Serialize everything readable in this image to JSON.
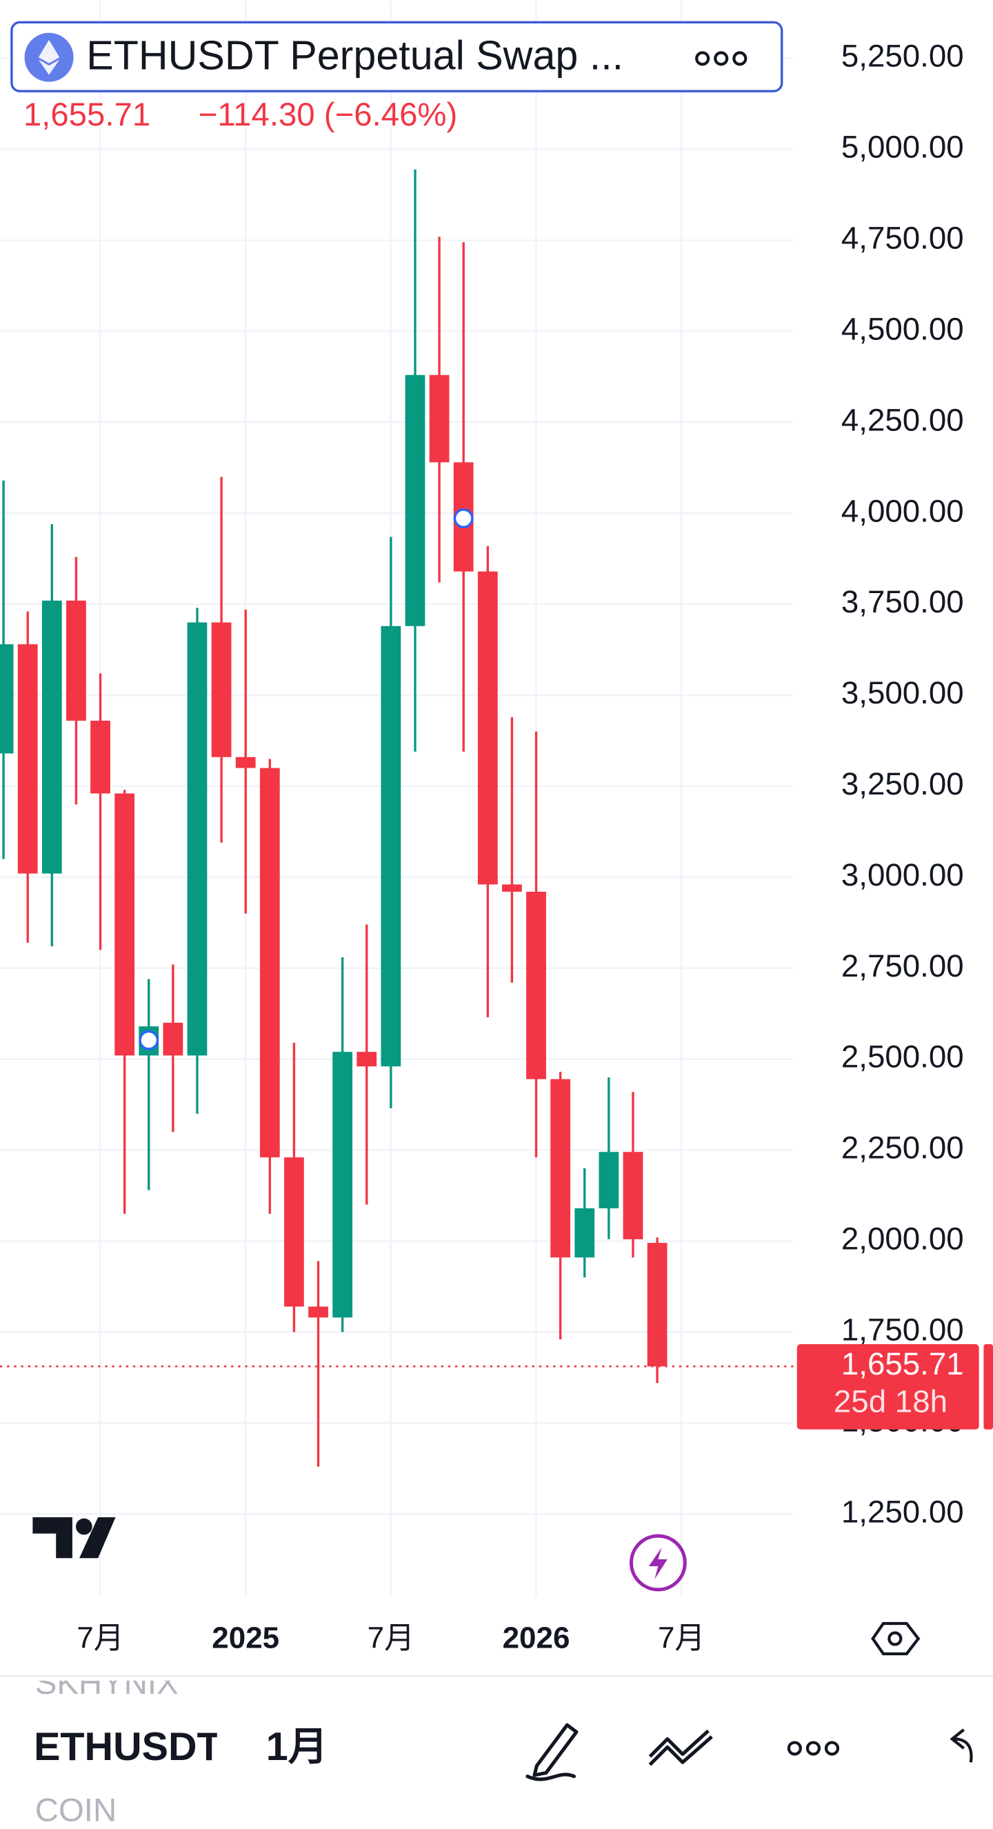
{
  "header": {
    "title": "ETHUSDT Perpetual Swap ...",
    "price": "1,655.71",
    "change": "−114.30 (−6.46%)"
  },
  "chart_data": {
    "type": "candlestick",
    "open": [
      3340,
      3640,
      3010,
      3760,
      3430,
      3230,
      2510,
      2600,
      2510,
      3700,
      3330,
      3300,
      2230,
      1820,
      1790,
      2520,
      2480,
      3690,
      4380,
      4140,
      3840,
      2980,
      2960,
      2445,
      1955,
      2090,
      2245,
      1995
    ],
    "high": [
      4090,
      3730,
      3970,
      3880,
      3560,
      3240,
      2720,
      2760,
      3740,
      4100,
      3735,
      3325,
      2545,
      1945,
      2780,
      2870,
      3935,
      4945,
      4760,
      4745,
      3910,
      3440,
      3400,
      2465,
      2200,
      2450,
      2410,
      2010
    ],
    "low": [
      3050,
      2820,
      2810,
      3200,
      2800,
      2075,
      2140,
      2300,
      2350,
      3095,
      2900,
      2075,
      1750,
      1380,
      1750,
      2100,
      2365,
      3345,
      3810,
      3345,
      2615,
      2710,
      2230,
      1730,
      1900,
      2005,
      1955,
      1610
    ],
    "close": [
      3640,
      3010,
      3760,
      3430,
      3230,
      2510,
      2590,
      2510,
      3700,
      3330,
      3300,
      2230,
      1820,
      1790,
      2520,
      2480,
      3690,
      4380,
      4140,
      3840,
      2980,
      2960,
      2445,
      1955,
      2090,
      2245,
      2005,
      1655.71
    ],
    "up_color": "#089981",
    "down_color": "#f23645",
    "xlim": [
      -0.145,
      32.627
    ],
    "xticks": [
      {
        "value": 4,
        "label": "7月"
      },
      {
        "value": 10,
        "label": "2025"
      },
      {
        "value": 16,
        "label": "7月"
      },
      {
        "value": 22,
        "label": "2026"
      },
      {
        "value": 28,
        "label": "7月"
      }
    ],
    "ylim": [
      1023,
      5410
    ],
    "yticks": [
      {
        "value": 1250,
        "label": "1,250.00"
      },
      {
        "value": 1500,
        "label": "1,500.00"
      },
      {
        "value": 1750,
        "label": "1,750.00"
      },
      {
        "value": 2000,
        "label": "2,000.00"
      },
      {
        "value": 2250,
        "label": "2,250.00"
      },
      {
        "value": 2500,
        "label": "2,500.00"
      },
      {
        "value": 2750,
        "label": "2,750.00"
      },
      {
        "value": 3000,
        "label": "3,000.00"
      },
      {
        "value": 3250,
        "label": "3,250.00"
      },
      {
        "value": 3500,
        "label": "3,500.00"
      },
      {
        "value": 3750,
        "label": "3,750.00"
      },
      {
        "value": 4000,
        "label": "4,000.00"
      },
      {
        "value": 4250,
        "label": "4,250.00"
      },
      {
        "value": 4500,
        "label": "4,500.00"
      },
      {
        "value": 4750,
        "label": "4,750.00"
      },
      {
        "value": 5000,
        "label": "5,000.00"
      },
      {
        "value": 5250,
        "label": "5,250.00"
      }
    ],
    "grid": true,
    "markers": [
      {
        "index": 6,
        "value": 2552
      },
      {
        "index": 19,
        "value": 3986
      }
    ],
    "last_price": {
      "value": 1655.71,
      "label": "1,655.71"
    },
    "countdown": "25d 18h"
  },
  "toolbar": {
    "symbol": "ETHUSDT",
    "interval": "1月",
    "watchlist": [
      "SKHYNIX",
      "COIN"
    ]
  }
}
